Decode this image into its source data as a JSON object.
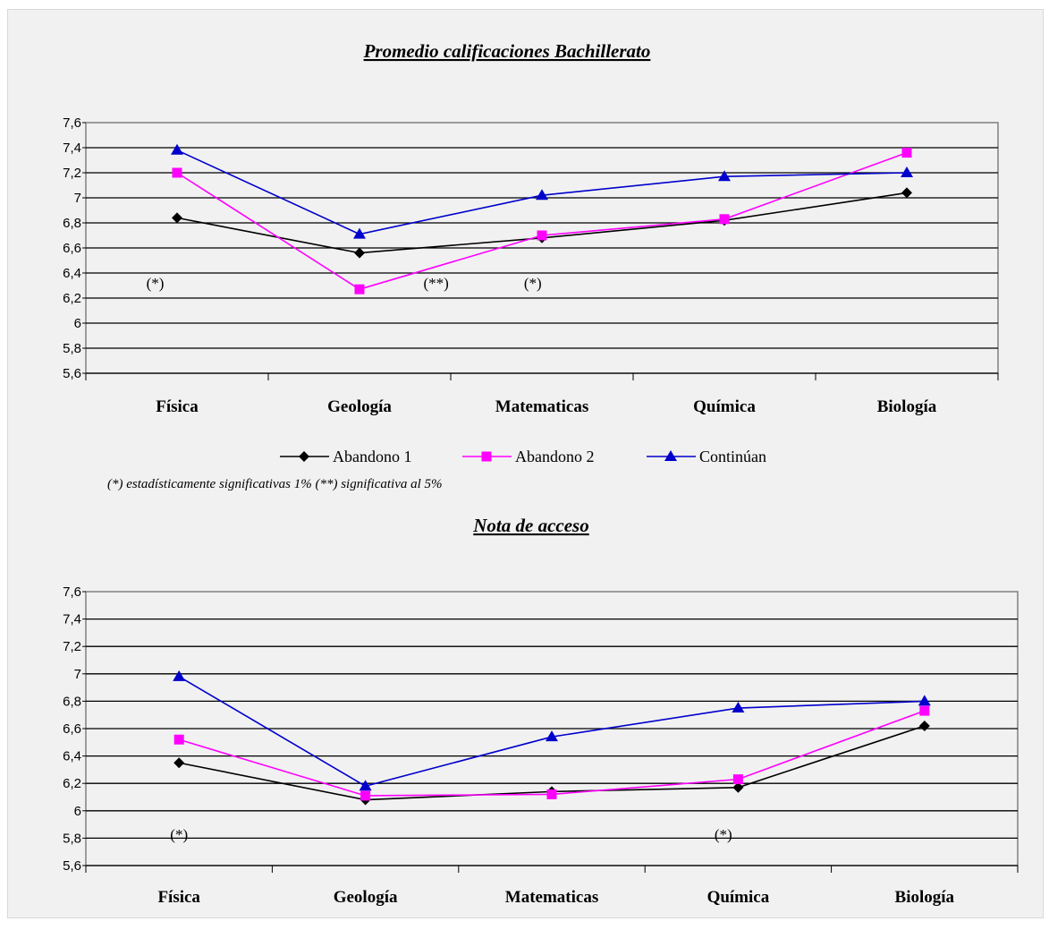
{
  "chart_data": [
    {
      "type": "line",
      "title": "Promedio calificaciones Bachillerato",
      "categories": [
        "Física",
        "Geología",
        "Matematicas",
        "Química",
        "Biología"
      ],
      "ylim": [
        5.6,
        7.6
      ],
      "yticks": [
        "5,6",
        "5,8",
        "6",
        "6,2",
        "6,4",
        "6,6",
        "6,8",
        "7",
        "7,2",
        "7,4",
        "7,6"
      ],
      "grid": true,
      "series": [
        {
          "name": "Abandono 1",
          "color": "#000000",
          "marker": "diamond",
          "values": [
            6.84,
            6.56,
            6.68,
            6.82,
            7.04
          ]
        },
        {
          "name": "Abandono 2",
          "color": "#ff00ff",
          "marker": "square",
          "values": [
            7.2,
            6.27,
            6.7,
            6.83,
            7.36
          ]
        },
        {
          "name": "Continúan",
          "color": "#0000cc",
          "marker": "triangle",
          "values": [
            7.38,
            6.71,
            7.02,
            7.17,
            7.2
          ]
        }
      ],
      "annotations": [
        {
          "text": "(*)",
          "x_pos": 0,
          "x_off": -0.12,
          "y": 6.32
        },
        {
          "text": "(**)",
          "x_pos": 1,
          "x_off": 0.42,
          "y": 6.32
        },
        {
          "text": "(*)",
          "x_pos": 2,
          "x_off": -0.05,
          "y": 6.32
        }
      ],
      "note": "(*) estadísticamente significativas 1% (**) significativa al 5%"
    },
    {
      "type": "line",
      "title": "Nota de acceso",
      "categories": [
        "Física",
        "Geología",
        "Matematicas",
        "Química",
        "Biología"
      ],
      "ylim": [
        5.6,
        7.6
      ],
      "yticks": [
        "5,6",
        "5,8",
        "6",
        "6,2",
        "6,4",
        "6,6",
        "6,8",
        "7",
        "7,2",
        "7,4",
        "7,6"
      ],
      "grid": true,
      "series": [
        {
          "name": "Abandono 1",
          "color": "#000000",
          "marker": "diamond",
          "values": [
            6.35,
            6.08,
            6.14,
            6.17,
            6.62
          ]
        },
        {
          "name": "Abandono 2",
          "color": "#ff00ff",
          "marker": "square",
          "values": [
            6.52,
            6.11,
            6.12,
            6.23,
            6.73
          ]
        },
        {
          "name": "Continúan",
          "color": "#0000cc",
          "marker": "triangle",
          "values": [
            6.98,
            6.18,
            6.54,
            6.75,
            6.8
          ]
        }
      ],
      "annotations": [
        {
          "text": "(*)",
          "x_pos": 0,
          "x_off": 0.0,
          "y": 5.83
        },
        {
          "text": "(*)",
          "x_pos": 3,
          "x_off": -0.08,
          "y": 5.83
        }
      ]
    }
  ],
  "legend": {
    "items": [
      {
        "name": "Abandono 1",
        "color": "#000000",
        "marker": "diamond"
      },
      {
        "name": "Abandono 2",
        "color": "#ff00ff",
        "marker": "square"
      },
      {
        "name": "Continúan",
        "color": "#0000cc",
        "marker": "triangle"
      }
    ]
  }
}
